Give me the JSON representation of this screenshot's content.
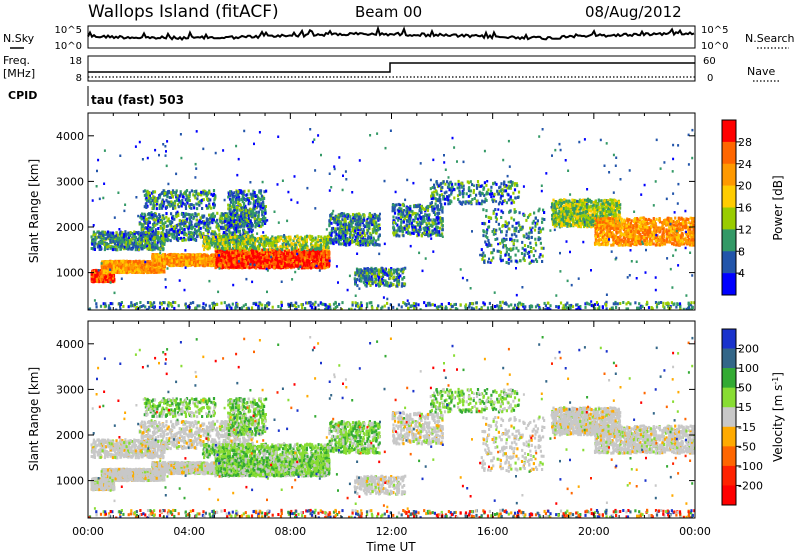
{
  "header": {
    "title": "Wallops Island (fitACF)",
    "beam": "Beam 00",
    "date": "08/Aug/2012"
  },
  "panels": {
    "sky": {
      "left_label": "N.Sky",
      "right_label": "N.Search",
      "tick_top_left": "10^5",
      "tick_bottom_left": "10^0",
      "tick_top_right": "10^5",
      "tick_bottom_right": "10^0"
    },
    "freq": {
      "left_label_1": "Freq.",
      "left_label_2": "[MHz]",
      "right_label": "Nave",
      "tick_top_left": "18",
      "tick_bottom_left": "8",
      "tick_top_right": "60",
      "tick_bottom_right": "0"
    },
    "cpid": {
      "label": "CPID",
      "text": "tau (fast) 503"
    }
  },
  "colorbars": {
    "power": {
      "label": "Power [dB]",
      "ticks": [
        "28",
        "24",
        "20",
        "16",
        "12",
        "8",
        "4"
      ],
      "colors": [
        "#ff0000",
        "#ff6600",
        "#ff9900",
        "#ffcc00",
        "#99cc00",
        "#339966",
        "#2255aa",
        "#0000ff"
      ]
    },
    "velocity": {
      "label_main": "Velocity [m s",
      "label_sup": "-1",
      "label_end": "]",
      "ticks": [
        "200",
        "100",
        "50",
        "15",
        "-15",
        "-50",
        "-100",
        "-200"
      ],
      "colors": [
        "#1a33cc",
        "#336688",
        "#33aa33",
        "#88dd33",
        "#c8c8c8",
        "#ffaa00",
        "#ff6600",
        "#ff2200",
        "#ff0000"
      ]
    }
  },
  "chart_data": [
    {
      "type": "heatmap",
      "ylabel": "Slant Range [km]",
      "xlabel": "",
      "y_ticks": [
        "1000",
        "2000",
        "3000",
        "4000"
      ],
      "x_ticks": [],
      "ylim": [
        180,
        4500
      ],
      "xlim": [
        0,
        24
      ]
    },
    {
      "type": "heatmap",
      "ylabel": "Slant Range [km]",
      "xlabel": "Time UT",
      "y_ticks": [
        "1000",
        "2000",
        "3000",
        "4000"
      ],
      "x_ticks": [
        "00:00",
        "04:00",
        "08:00",
        "12:00",
        "16:00",
        "20:00",
        "00:00"
      ],
      "ylim": [
        180,
        4500
      ],
      "xlim": [
        0,
        24
      ]
    }
  ]
}
